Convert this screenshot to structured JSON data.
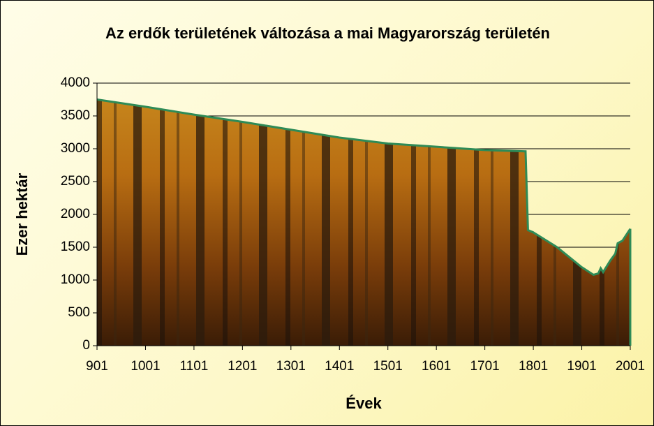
{
  "chart_data": {
    "type": "area",
    "title": "Az erdők területének változása a mai Magyarország területén",
    "x_label": "Évek",
    "y_label": "Ezer hektár",
    "x": [
      901,
      1001,
      1101,
      1201,
      1301,
      1401,
      1501,
      1601,
      1701,
      1785,
      1790,
      1800,
      1850,
      1900,
      1925,
      1935,
      1940,
      1945,
      1960,
      1970,
      1975,
      1985,
      2001
    ],
    "series": [
      {
        "color": "#2e8b57",
        "values": [
          3750,
          3640,
          3520,
          3410,
          3290,
          3170,
          3080,
          3030,
          2980,
          2960,
          1760,
          1730,
          1500,
          1200,
          1080,
          1100,
          1180,
          1120,
          1300,
          1400,
          1560,
          1600,
          1780
        ]
      }
    ],
    "xlim": [
      901,
      2001
    ],
    "xticks": [
      901,
      1001,
      1101,
      1201,
      1301,
      1401,
      1501,
      1601,
      1701,
      1801,
      1901,
      2001
    ],
    "ylim": [
      0,
      4000
    ],
    "yticks": [
      0,
      500,
      1000,
      1500,
      2000,
      2500,
      3000,
      3500,
      4000
    ],
    "grid": true
  }
}
